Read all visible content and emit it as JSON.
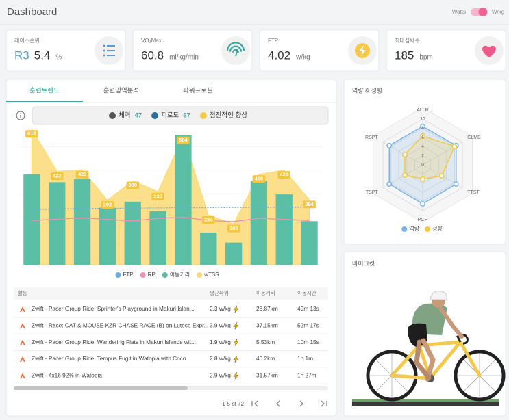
{
  "header": {
    "title": "Dashboard",
    "toggle_off": "Watts",
    "toggle_on": "W/kg"
  },
  "cards": [
    {
      "label": "레이스순위",
      "rank": "R3",
      "value": 5.4,
      "unit": "%"
    },
    {
      "label": "VO₂Max",
      "value": 60.8,
      "unit": "ml/kg/min"
    },
    {
      "label": "FTP",
      "value": 4.02,
      "unit": "w/kg"
    },
    {
      "label": "최대심박수",
      "value": 185,
      "unit": "bpm"
    }
  ],
  "tabs": {
    "items": [
      "훈련트렌드",
      "훈련영역분석",
      "파워프로필"
    ],
    "active": 0
  },
  "summary": [
    {
      "label": "체력",
      "value": 47
    },
    {
      "label": "피로도",
      "value": 67
    },
    {
      "label": "점진적인 향상"
    }
  ],
  "trend_chart": {
    "type": "combo",
    "ylim": [
      0,
      640
    ],
    "series": [
      {
        "name": "FTP",
        "kind": "line",
        "dashed": true,
        "color": "#6aaee6",
        "values": [
          250,
          252,
          254,
          255,
          256,
          257,
          258,
          258,
          259,
          259,
          260,
          260
        ]
      },
      {
        "name": "RP",
        "kind": "line",
        "color": "#ee8fb3",
        "values": [
          200,
          206,
          212,
          205,
          198,
          210,
          215,
          200,
          195,
          210,
          205,
          200
        ]
      },
      {
        "name": "이동거리",
        "kind": "bar",
        "color": "#5bbfa5",
        "values": [
          409,
          373,
          388,
          258,
          285,
          242,
          585,
          145,
          100,
          379,
          318,
          197
        ]
      },
      {
        "name": "wTSS",
        "kind": "area",
        "color": "#fcd977",
        "label_color": "#f5c542",
        "values": [
          613,
          422,
          429,
          292,
          380,
          330,
          584,
          224,
          185,
          409,
          428,
          294
        ]
      }
    ]
  },
  "activities": {
    "columns": [
      "활동",
      "평균파워",
      "이동거리",
      "이동시간"
    ],
    "rows": [
      [
        "Zwift - Pacer Group Ride: Sprinter's Playground in Makuri Islan...",
        "2.3 w/kg",
        "28.87km",
        "49m 13s"
      ],
      [
        "Zwift - Race: CAT & MOUSE KZR CHASE RACE (B) on Lutece Expr...",
        "3.9 w/kg",
        "37.15km",
        "52m 17s"
      ],
      [
        "Zwift - Pacer Group Ride: Wandering Flats in Makuri Islands wit...",
        "1.9 w/kg",
        "5.53km",
        "10m 15s"
      ],
      [
        "Zwift - Pacer Group Ride: Tempus Fugit in Watopia with Coco",
        "2.8 w/kg",
        "40.2km",
        "1h 1m"
      ],
      [
        "Zwift - 4x16 92% in Watopia",
        "2.9 w/kg",
        "31.57km",
        "1h 27m"
      ]
    ],
    "pagination": "1-5 of 72"
  },
  "radar_chart": {
    "type": "radar",
    "title": "역량 & 성향",
    "axes": [
      "ALLR",
      "CLMB",
      "TTST",
      "PCH",
      "TSPT",
      "RSPT"
    ],
    "rlim": [
      0,
      10
    ],
    "rticks": [
      0,
      2,
      4,
      6,
      8,
      10
    ],
    "series": [
      {
        "name": "역량",
        "color": "#7cb5e8",
        "values": [
          8.4,
          8.4,
          8.4,
          8.5,
          8.4,
          8.4
        ]
      },
      {
        "name": "성향",
        "color": "#f5c842",
        "values": [
          6.3,
          8,
          4.8,
          3.1,
          4.5,
          4.5
        ]
      }
    ]
  },
  "bike": {
    "title": "바이크킷"
  }
}
